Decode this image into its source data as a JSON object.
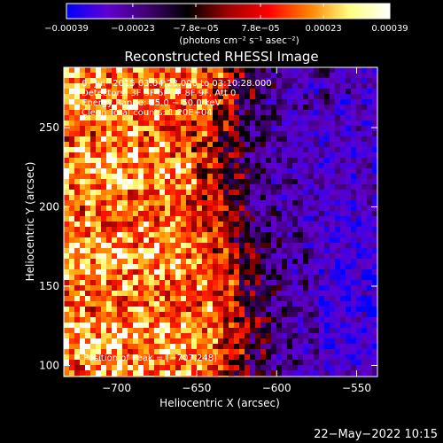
{
  "chart_data": {
    "type": "heatmap",
    "title": "Reconstructed RHESSI Image",
    "xlabel": "Heliocentric X (arcsec)",
    "ylabel": "Heliocentric Y (arcsec)",
    "xlim": [
      -733,
      -537
    ],
    "ylim": [
      93,
      288
    ],
    "x_ticks": [
      -700,
      -650,
      -600,
      -550
    ],
    "x_tick_labels": [
      "−700",
      "−650",
      "−600",
      "−550"
    ],
    "y_ticks": [
      100,
      150,
      200,
      250
    ],
    "y_tick_labels": [
      "100",
      "150",
      "200",
      "250"
    ],
    "colorbar": {
      "vmin": -0.00039,
      "vmax": 0.00039,
      "ticks": [
        -0.00039,
        -0.00023,
        -7.8e-05,
        7.8e-05,
        0.00023,
        0.00039
      ],
      "tick_labels": [
        "−0.00039",
        "−0.00023",
        "−7.8e−05",
        "7.8e−05",
        "0.00023",
        "0.00039"
      ],
      "units_label": "(photons cm⁻² s⁻¹ asec⁻²)",
      "colors": [
        "#0000ff",
        "#6000d0",
        "#400070",
        "#000000",
        "#a00000",
        "#ff0000",
        "#ff8000",
        "#ffff80",
        "#ffffff"
      ]
    },
    "annotations": [
      "6−Jul−2015 03:04:28.000 to 03:10:28.000",
      "Detectors: 3F 5F 6F 7F 8F 9F, Att 0",
      "Energy Range: 25.0 − 50.0 keV",
      "Clean    Total counts: 1.20E+04"
    ],
    "peak_label": "Position of Peak = [−707,248]",
    "peak": [
      -707,
      248
    ],
    "grid": false,
    "legend": "none"
  },
  "footer": {
    "timestamp": "22−May−2022 10:15"
  }
}
